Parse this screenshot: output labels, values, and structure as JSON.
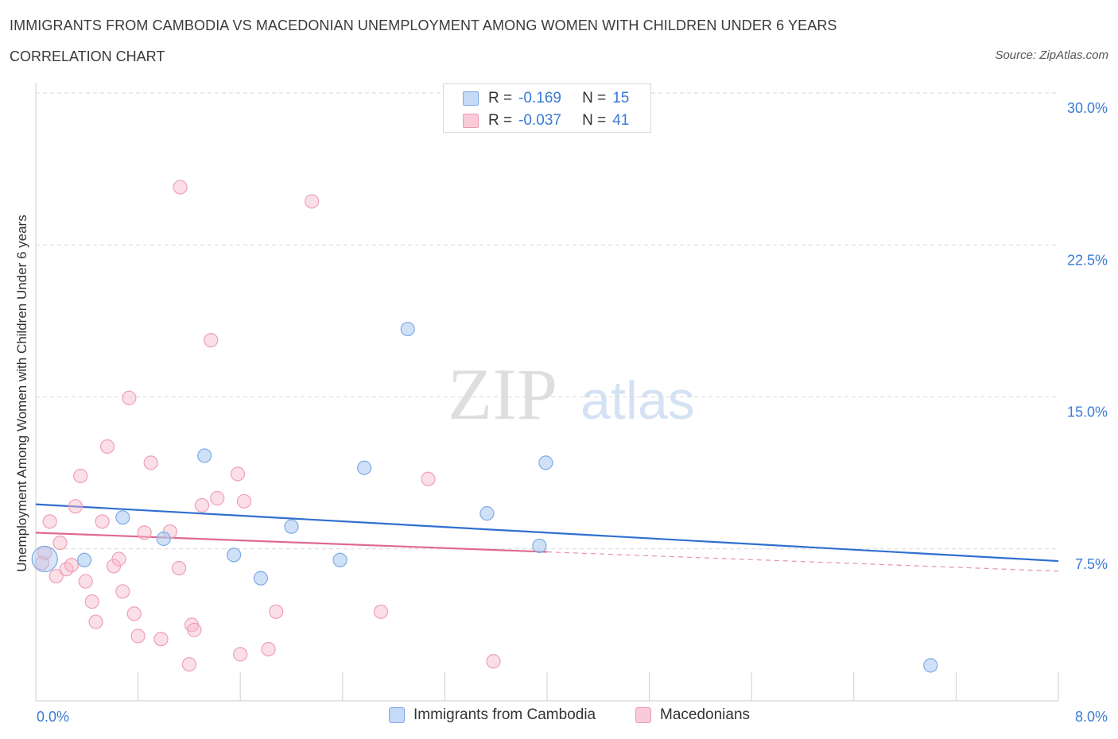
{
  "title": "IMMIGRANTS FROM CAMBODIA VS MACEDONIAN UNEMPLOYMENT AMONG WOMEN WITH CHILDREN UNDER 6 YEARS",
  "subtitle": "CORRELATION CHART",
  "source": "Source: ZipAtlas.com",
  "watermark": {
    "zip": "ZIP",
    "atlas": "atlas"
  },
  "stats": [
    {
      "r_label": "R =",
      "r_value": "-0.169",
      "n_label": "N =",
      "n_value": "15",
      "color": "#a8c8f0"
    },
    {
      "r_label": "R =",
      "r_value": "-0.037",
      "n_label": "N =",
      "n_value": "41",
      "color": "#f6b8ca"
    }
  ],
  "legend": [
    {
      "label": "Immigrants from Cambodia",
      "color": "#a8c8f0"
    },
    {
      "label": "Macedonians",
      "color": "#f6b8ca"
    }
  ],
  "chart_data": {
    "type": "scatter",
    "title": "IMMIGRANTS FROM CAMBODIA VS MACEDONIAN UNEMPLOYMENT AMONG WOMEN WITH CHILDREN UNDER 6 YEARS",
    "ylabel": "Unemployment Among Women with Children Under 6 years",
    "xlabel": "",
    "xlim": [
      0,
      8.0
    ],
    "ylim": [
      0,
      30.0
    ],
    "x_tick_labels": [
      "0.0%",
      "8.0%"
    ],
    "y_tick_labels": [
      "7.5%",
      "15.0%",
      "22.5%",
      "30.0%"
    ],
    "y_ticks": [
      7.5,
      15.0,
      22.5,
      30.0
    ],
    "grid": "horizontal dashed",
    "legend_position": "bottom",
    "series": [
      {
        "name": "Immigrants from Cambodia",
        "color": "#3a7bd5",
        "points": [
          [
            0.07,
            7.0
          ],
          [
            0.38,
            6.95
          ],
          [
            0.68,
            9.05
          ],
          [
            1.0,
            8.0
          ],
          [
            1.32,
            12.1
          ],
          [
            1.55,
            7.2
          ],
          [
            1.76,
            6.05
          ],
          [
            2.0,
            8.6
          ],
          [
            2.38,
            6.95
          ],
          [
            2.57,
            11.5
          ],
          [
            2.91,
            18.35
          ],
          [
            3.53,
            9.25
          ],
          [
            3.94,
            7.65
          ],
          [
            3.99,
            11.75
          ],
          [
            7.0,
            1.75
          ]
        ],
        "trend": {
          "x": [
            0,
            8.0
          ],
          "y": [
            9.7,
            6.9
          ]
        }
      },
      {
        "name": "Macedonians",
        "color": "#e0688f",
        "points": [
          [
            0.05,
            6.8
          ],
          [
            0.07,
            7.3
          ],
          [
            0.11,
            8.85
          ],
          [
            0.16,
            6.15
          ],
          [
            0.19,
            7.8
          ],
          [
            0.24,
            6.5
          ],
          [
            0.28,
            6.7
          ],
          [
            0.31,
            9.6
          ],
          [
            0.35,
            11.1
          ],
          [
            0.39,
            5.9
          ],
          [
            0.44,
            4.9
          ],
          [
            0.47,
            3.9
          ],
          [
            0.52,
            8.85
          ],
          [
            0.56,
            12.55
          ],
          [
            0.61,
            6.65
          ],
          [
            0.65,
            7.0
          ],
          [
            0.68,
            5.4
          ],
          [
            0.73,
            14.95
          ],
          [
            0.77,
            4.3
          ],
          [
            0.8,
            3.2
          ],
          [
            0.85,
            8.3
          ],
          [
            0.9,
            11.75
          ],
          [
            0.98,
            3.05
          ],
          [
            1.05,
            8.35
          ],
          [
            1.12,
            6.55
          ],
          [
            1.13,
            25.35
          ],
          [
            1.2,
            1.8
          ],
          [
            1.22,
            3.75
          ],
          [
            1.24,
            3.5
          ],
          [
            1.3,
            9.65
          ],
          [
            1.37,
            17.8
          ],
          [
            1.42,
            10.0
          ],
          [
            1.58,
            11.2
          ],
          [
            1.6,
            2.3
          ],
          [
            1.63,
            9.85
          ],
          [
            1.82,
            2.55
          ],
          [
            1.88,
            4.4
          ],
          [
            2.16,
            24.65
          ],
          [
            2.7,
            4.4
          ],
          [
            3.07,
            10.95
          ],
          [
            3.58,
            1.95
          ]
        ],
        "trend": {
          "x": [
            0,
            4.0
          ],
          "y": [
            8.3,
            7.35
          ]
        },
        "trend_dashed": {
          "x": [
            4.0,
            8.0
          ],
          "y": [
            7.35,
            6.4
          ]
        }
      }
    ]
  }
}
